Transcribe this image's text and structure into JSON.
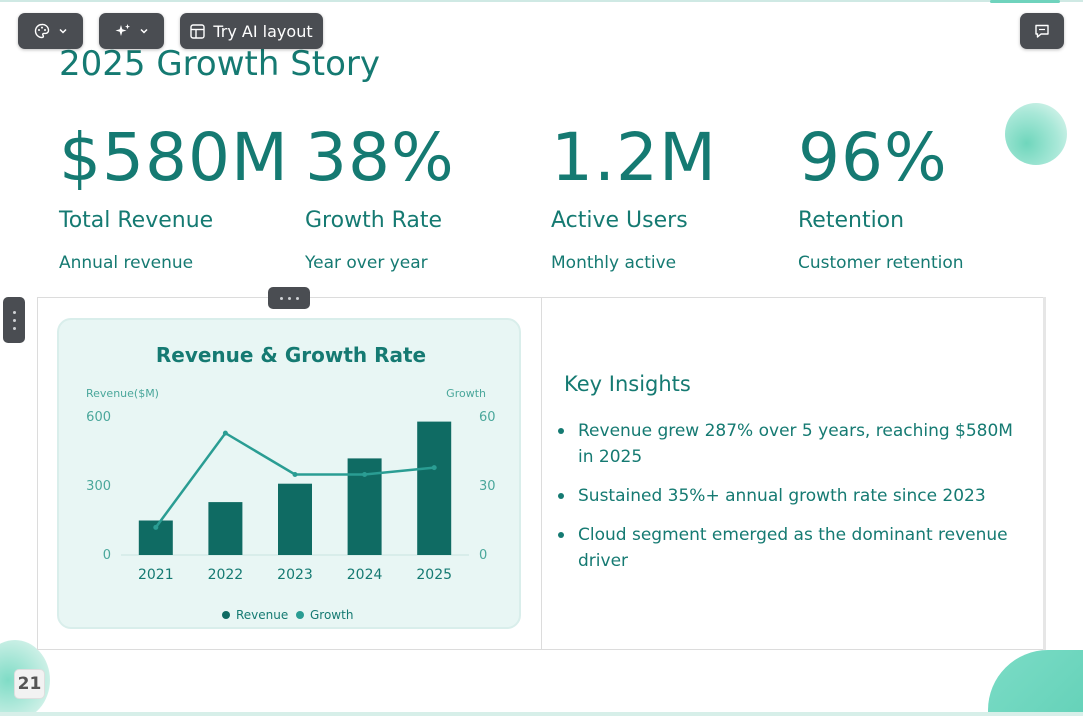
{
  "toolbar": {
    "theme_icon": "palette-icon",
    "magic_icon": "sparkles-icon",
    "ai_layout_label": "Try AI layout",
    "ai_layout_icon": "layout-icon",
    "comment_icon": "comment-icon"
  },
  "slide": {
    "title": "2025 Growth Story",
    "stats": [
      {
        "value": "$580M",
        "label": "Total Revenue",
        "sub": "Annual revenue"
      },
      {
        "value": "38%",
        "label": "Growth Rate",
        "sub": "Year over year"
      },
      {
        "value": "1.2M",
        "label": "Active Users",
        "sub": "Monthly active"
      },
      {
        "value": "96%",
        "label": "Retention",
        "sub": "Customer retention"
      }
    ],
    "insights_title": "Key Insights",
    "insights": [
      "Revenue grew 287% over 5 years, reaching $580M in 2025",
      "Sustained 35%+ annual growth rate since 2023",
      "Cloud segment emerged as the dominant revenue driver"
    ],
    "page_number": "21"
  },
  "colors": {
    "accent": "#157a72",
    "bar": "#0f6b63",
    "line": "#2a9d93",
    "card_bg": "#e8f6f4"
  },
  "chart_data": {
    "type": "bar",
    "title": "Revenue & Growth Rate",
    "categories": [
      "2021",
      "2022",
      "2023",
      "2024",
      "2025"
    ],
    "y_left_label": "Revenue($M)",
    "y_right_label": "Growth",
    "y_left_lim": [
      0,
      600
    ],
    "y_right_lim": [
      0,
      60
    ],
    "y_left_ticks": [
      "600",
      "300",
      "0"
    ],
    "y_right_ticks": [
      "60",
      "30",
      "0"
    ],
    "series": [
      {
        "name": "Revenue",
        "type": "bar",
        "axis": "left",
        "values": [
          150,
          230,
          310,
          420,
          580
        ]
      },
      {
        "name": "Growth",
        "type": "line",
        "axis": "right",
        "values": [
          12,
          53,
          35,
          35,
          38
        ]
      }
    ],
    "legend_position": "bottom",
    "grid": false
  }
}
